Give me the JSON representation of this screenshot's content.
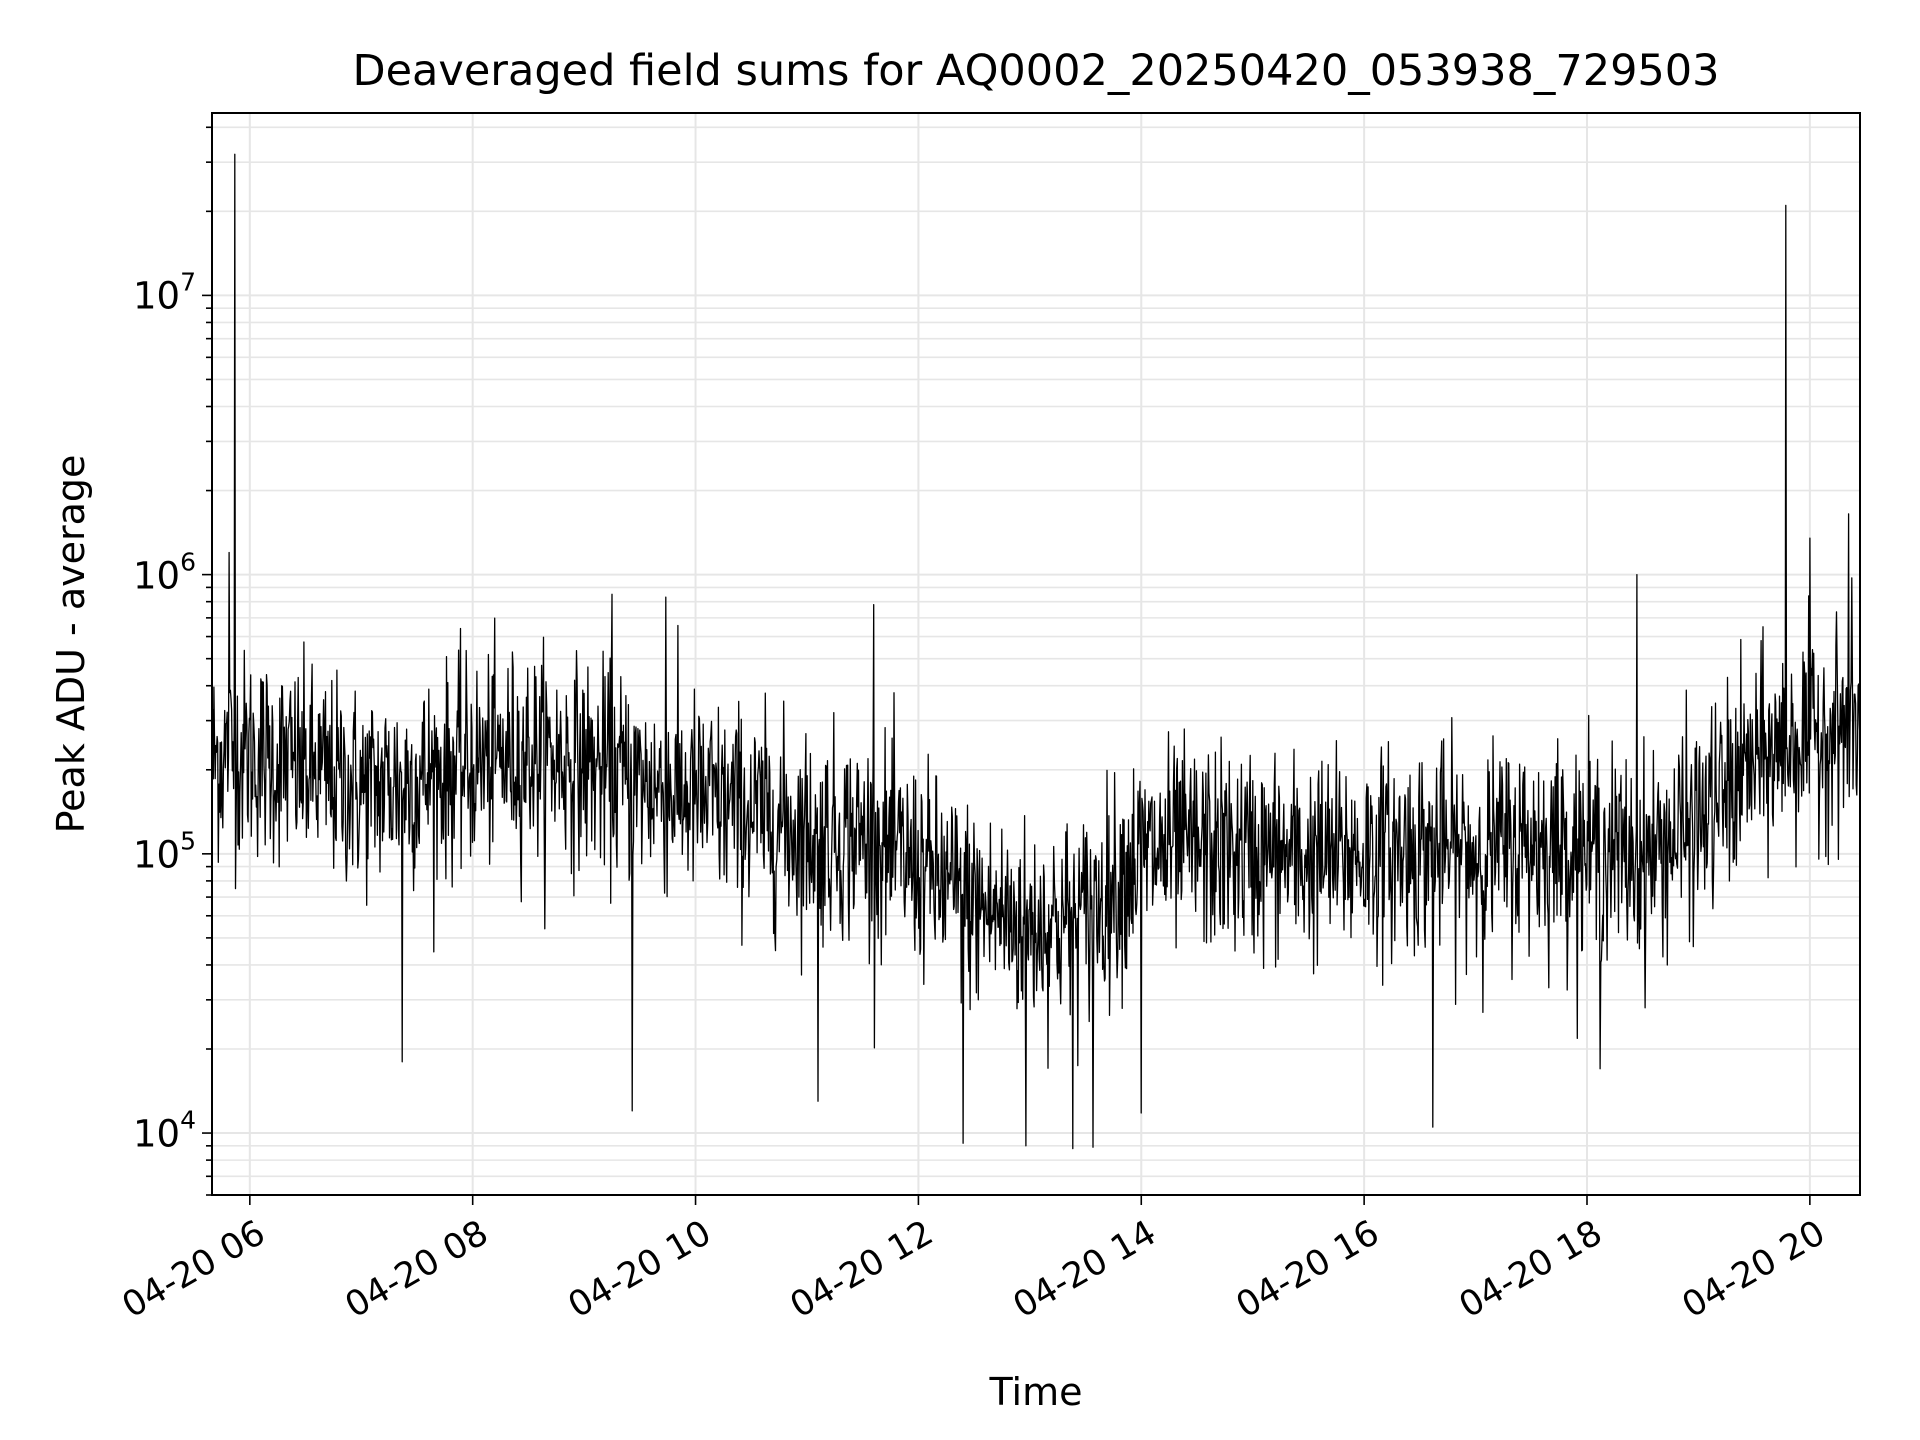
{
  "chart_data": {
    "type": "line",
    "title": "Deaveraged field sums for AQ0002_20250420_053938_729503",
    "xlabel": "Time",
    "ylabel": "Peak ADU - average",
    "x_range": [
      "2025-04-20 05:39:38",
      "2025-04-20 20:27:00"
    ],
    "ylim": [
      6000,
      45000000
    ],
    "yscale": "log",
    "grid": true,
    "line_color": "#000000",
    "x_ticks": [
      {
        "value": "2025-04-20 06:00",
        "label": "04-20 06"
      },
      {
        "value": "2025-04-20 08:00",
        "label": "04-20 08"
      },
      {
        "value": "2025-04-20 10:00",
        "label": "04-20 10"
      },
      {
        "value": "2025-04-20 12:00",
        "label": "04-20 12"
      },
      {
        "value": "2025-04-20 14:00",
        "label": "04-20 14"
      },
      {
        "value": "2025-04-20 16:00",
        "label": "04-20 16"
      },
      {
        "value": "2025-04-20 18:00",
        "label": "04-20 18"
      },
      {
        "value": "2025-04-20 20:00",
        "label": "04-20 20"
      }
    ],
    "y_ticks": [
      {
        "value": 10000,
        "base": "10",
        "exp": "4"
      },
      {
        "value": 100000,
        "base": "10",
        "exp": "5"
      },
      {
        "value": 1000000,
        "base": "10",
        "exp": "6"
      },
      {
        "value": 10000000,
        "base": "10",
        "exp": "7"
      }
    ],
    "series": [
      {
        "trend": [
          [
            "2025-04-20 05:40",
            220000
          ],
          [
            "2025-04-20 06:00",
            230000
          ],
          [
            "2025-04-20 06:30",
            200000
          ],
          [
            "2025-04-20 07:00",
            170000
          ],
          [
            "2025-04-20 07:30",
            185000
          ],
          [
            "2025-04-20 08:00",
            210000
          ],
          [
            "2025-04-20 08:30",
            230000
          ],
          [
            "2025-04-20 09:00",
            210000
          ],
          [
            "2025-04-20 09:30",
            180000
          ],
          [
            "2025-04-20 10:00",
            160000
          ],
          [
            "2025-04-20 10:30",
            140000
          ],
          [
            "2025-04-20 11:00",
            120000
          ],
          [
            "2025-04-20 11:30",
            115000
          ],
          [
            "2025-04-20 12:00",
            90000
          ],
          [
            "2025-04-20 12:30",
            65000
          ],
          [
            "2025-04-20 13:00",
            55000
          ],
          [
            "2025-04-20 13:30",
            60000
          ],
          [
            "2025-04-20 14:00",
            100000
          ],
          [
            "2025-04-20 14:30",
            105000
          ],
          [
            "2025-04-20 15:00",
            100000
          ],
          [
            "2025-04-20 15:30",
            95000
          ],
          [
            "2025-04-20 16:00",
            100000
          ],
          [
            "2025-04-20 16:30",
            105000
          ],
          [
            "2025-04-20 17:00",
            100000
          ],
          [
            "2025-04-20 17:30",
            110000
          ],
          [
            "2025-04-20 18:00",
            105000
          ],
          [
            "2025-04-20 18:30",
            95000
          ],
          [
            "2025-04-20 19:00",
            130000
          ],
          [
            "2025-04-20 19:30",
            210000
          ],
          [
            "2025-04-20 20:00",
            270000
          ],
          [
            "2025-04-20 20:27",
            290000
          ]
        ],
        "spikes": [
          [
            "2025-04-20 05:52",
            32000000
          ],
          [
            "2025-04-20 05:49",
            1200000
          ],
          [
            "2025-04-20 09:15",
            850000
          ],
          [
            "2025-04-20 09:44",
            830000
          ],
          [
            "2025-04-20 11:36",
            780000
          ],
          [
            "2025-04-20 18:27",
            1000000
          ],
          [
            "2025-04-20 19:47",
            21000000
          ],
          [
            "2025-04-20 20:00",
            1350000
          ],
          [
            "2025-04-20 20:21",
            1650000
          ]
        ],
        "dips": [
          [
            "2025-04-20 07:22",
            18000
          ],
          [
            "2025-04-20 09:26",
            12000
          ],
          [
            "2025-04-20 11:06",
            13000
          ],
          [
            "2025-04-20 12:24",
            9200
          ],
          [
            "2025-04-20 12:58",
            9000
          ],
          [
            "2025-04-20 13:23",
            8800
          ],
          [
            "2025-04-20 13:34",
            8900
          ],
          [
            "2025-04-20 14:00",
            11800
          ],
          [
            "2025-04-20 16:37",
            10500
          ],
          [
            "2025-04-20 18:07",
            17000
          ]
        ]
      }
    ]
  }
}
